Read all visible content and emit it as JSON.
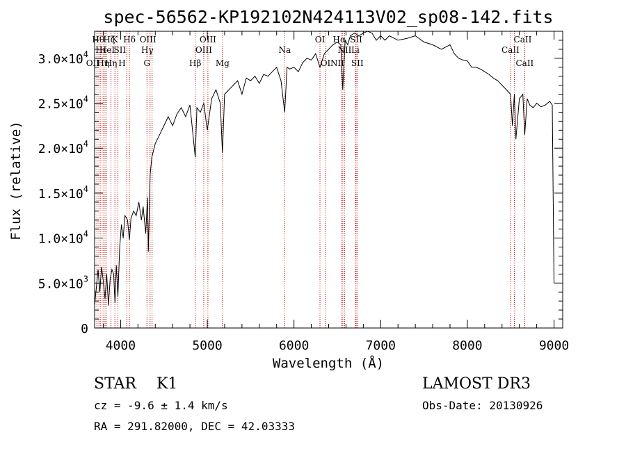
{
  "chart_data": {
    "type": "line",
    "title": "spec-56562-KP192102N424113V02_sp08-142.fits",
    "xlabel": "Wavelength (Å)",
    "ylabel": "Flux (relative)",
    "xlim": [
      3700,
      9100
    ],
    "ylim": [
      0,
      33000
    ],
    "x_ticks": [
      4000,
      5000,
      6000,
      7000,
      8000,
      9000
    ],
    "x_tick_labels": [
      "4000",
      "5000",
      "6000",
      "7000",
      "8000",
      "9000"
    ],
    "y_ticks": [
      0,
      5000,
      10000,
      15000,
      20000,
      25000,
      30000
    ],
    "y_tick_labels": [
      {
        "mant": "0",
        "exp": ""
      },
      {
        "mant": "5.0×10",
        "exp": "3"
      },
      {
        "mant": "1.0×10",
        "exp": "4"
      },
      {
        "mant": "1.5×10",
        "exp": "4"
      },
      {
        "mant": "2.0×10",
        "exp": "4"
      },
      {
        "mant": "2.5×10",
        "exp": "4"
      },
      {
        "mant": "3.0×10",
        "exp": "4"
      }
    ],
    "series": [
      {
        "name": "spectrum",
        "x": [
          3700,
          3720,
          3740,
          3760,
          3780,
          3800,
          3820,
          3840,
          3860,
          3880,
          3900,
          3920,
          3935,
          3950,
          3969,
          3990,
          4010,
          4030,
          4050,
          4080,
          4101,
          4120,
          4150,
          4180,
          4210,
          4240,
          4260,
          4290,
          4310,
          4320,
          4340,
          4360,
          4400,
          4450,
          4500,
          4550,
          4600,
          4650,
          4700,
          4750,
          4800,
          4861,
          4880,
          4920,
          4960,
          5000,
          5050,
          5100,
          5150,
          5175,
          5200,
          5250,
          5300,
          5350,
          5400,
          5450,
          5500,
          5550,
          5600,
          5650,
          5700,
          5750,
          5800,
          5850,
          5893,
          5920,
          5950,
          6000,
          6050,
          6100,
          6150,
          6200,
          6250,
          6300,
          6350,
          6400,
          6450,
          6500,
          6540,
          6563,
          6590,
          6620,
          6650,
          6700,
          6750,
          6800,
          6850,
          6900,
          6950,
          7000,
          7050,
          7100,
          7200,
          7300,
          7400,
          7500,
          7600,
          7700,
          7800,
          7850,
          7900,
          7950,
          8000,
          8050,
          8100,
          8150,
          8200,
          8250,
          8300,
          8350,
          8400,
          8450,
          8498,
          8520,
          8542,
          8560,
          8600,
          8640,
          8662,
          8690,
          8720,
          8760,
          8800,
          8850,
          8900,
          8950,
          8980,
          9000
        ],
        "y": [
          2500,
          4500,
          6500,
          4000,
          6800,
          5200,
          3200,
          6000,
          2500,
          5500,
          6500,
          6000,
          2800,
          7000,
          3500,
          9000,
          11500,
          10000,
          12500,
          12000,
          9800,
          12200,
          13000,
          12500,
          14000,
          12000,
          13500,
          10500,
          14500,
          8500,
          17000,
          19000,
          20500,
          21500,
          22500,
          23500,
          22500,
          23800,
          24500,
          23500,
          24800,
          19000,
          24500,
          24000,
          25000,
          22000,
          25500,
          26500,
          25000,
          19500,
          26000,
          26500,
          27000,
          27500,
          26000,
          27800,
          27500,
          28000,
          27200,
          28200,
          28000,
          28500,
          29000,
          27500,
          24000,
          29000,
          28800,
          29000,
          28500,
          29500,
          30000,
          29800,
          30500,
          29000,
          30500,
          31000,
          31500,
          31800,
          31500,
          26500,
          32000,
          31500,
          32500,
          32800,
          32500,
          32800,
          33000,
          32800,
          32000,
          32500,
          32000,
          32500,
          32000,
          32200,
          32500,
          31800,
          31500,
          31000,
          31500,
          30500,
          30000,
          29800,
          29700,
          29000,
          29000,
          28800,
          28500,
          28200,
          27800,
          27500,
          27000,
          26500,
          26000,
          22500,
          26000,
          21000,
          25500,
          26000,
          21500,
          25500,
          24800,
          24500,
          25000,
          24600,
          24800,
          25200,
          24800,
          5000
        ]
      }
    ],
    "lines": [
      {
        "x": 3727,
        "labels": [
          "OII"
        ],
        "row": 3,
        "dx": -6
      },
      {
        "x": 3750,
        "labels": [
          "Hθ"
        ],
        "row": 1,
        "dx": -1
      },
      {
        "x": 3771,
        "labels": [
          "Hι"
        ],
        "row": 2,
        "dx": 0
      },
      {
        "x": 3798,
        "labels": [
          "Hη"
        ],
        "row": 3,
        "dx": 0
      },
      {
        "x": 3820,
        "labels": [
          "HeI"
        ],
        "row": 2,
        "dx": 3
      },
      {
        "x": 3835,
        "labels": [
          "Hζ"
        ],
        "row": 1,
        "dx": 4
      },
      {
        "x": 3889,
        "labels": [
          "Hη"
        ],
        "row": 3,
        "dx": 0
      },
      {
        "x": 3934,
        "labels": [
          "K"
        ],
        "row": 1,
        "dx": 0
      },
      {
        "x": 3969,
        "labels": [
          "H"
        ],
        "row": 3,
        "dx": 6
      },
      {
        "x": 4072,
        "labels": [
          "SII"
        ],
        "row": 2,
        "dx": -10
      },
      {
        "x": 4102,
        "labels": [
          "Hδ"
        ],
        "row": 1,
        "dx": 0
      },
      {
        "x": 4304,
        "labels": [
          "G"
        ],
        "row": 3,
        "dx": 0
      },
      {
        "x": 4340,
        "labels": [
          "Hγ"
        ],
        "row": 2,
        "dx": -4
      },
      {
        "x": 4363,
        "labels": [
          "OIII"
        ],
        "row": 1,
        "dx": -6
      },
      {
        "x": 4861,
        "labels": [
          "Hβ"
        ],
        "row": 3,
        "dx": 0
      },
      {
        "x": 4959,
        "labels": [
          "OIII"
        ],
        "row": 2,
        "dx": 0
      },
      {
        "x": 5007,
        "labels": [
          "OIII"
        ],
        "row": 1,
        "dx": 0
      },
      {
        "x": 5175,
        "labels": [
          "Mg"
        ],
        "row": 3,
        "dx": 0
      },
      {
        "x": 5893,
        "labels": [
          "Na"
        ],
        "row": 2,
        "dx": 0
      },
      {
        "x": 6300,
        "labels": [
          "OI"
        ],
        "row": 1,
        "dx": 0
      },
      {
        "x": 6364,
        "labels": [
          "OI"
        ],
        "row": 3,
        "dx": 0
      },
      {
        "x": 6548,
        "labels": [
          "NII"
        ],
        "row": 3,
        "dx": -6
      },
      {
        "x": 6563,
        "labels": [
          "Hα"
        ],
        "row": 1,
        "dx": -5
      },
      {
        "x": 6584,
        "labels": [
          "NII"
        ],
        "row": 2,
        "dx": 0
      },
      {
        "x": 6708,
        "labels": [
          "Li"
        ],
        "row": 2,
        "dx": 0
      },
      {
        "x": 6717,
        "labels": [
          "SII"
        ],
        "row": 1,
        "dx": 0
      },
      {
        "x": 6731,
        "labels": [
          "SII"
        ],
        "row": 3,
        "dx": 0
      },
      {
        "x": 8498,
        "labels": [
          "CaII"
        ],
        "row": 2,
        "dx": 0
      },
      {
        "x": 8542,
        "labels": [
          "CaII"
        ],
        "row": 1,
        "dx": 12
      },
      {
        "x": 8662,
        "labels": [
          "CaII"
        ],
        "row": 3,
        "dx": 0
      }
    ]
  },
  "info": {
    "class": "STAR",
    "subclass": "K1",
    "survey": "LAMOST DR3",
    "redshift": "cz = -9.6 ± 1.4 km/s",
    "obs_date": "Obs-Date: 20130926",
    "coords": "RA = 291.82000, DEC =  42.03333"
  }
}
